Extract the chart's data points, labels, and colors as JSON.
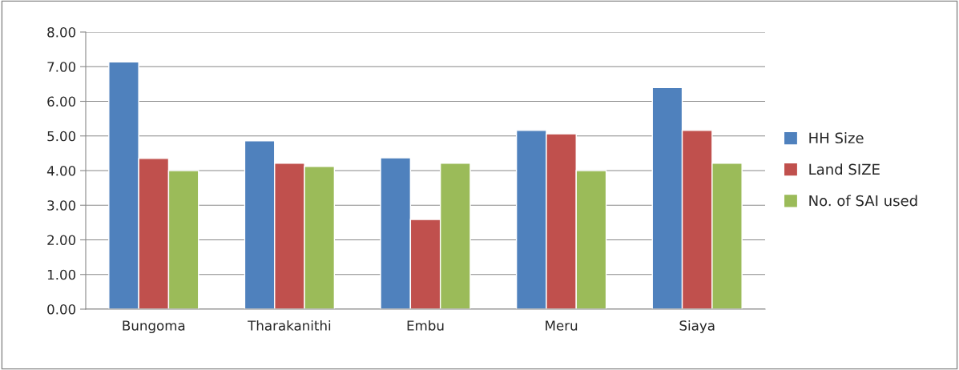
{
  "chart_data": {
    "type": "bar",
    "categories": [
      "Bungoma",
      "Tharakanithi",
      "Embu",
      "Meru",
      "Siaya"
    ],
    "series": [
      {
        "name": "HH Size",
        "color": "#4f81bd",
        "values": [
          7.14,
          4.86,
          4.37,
          5.16,
          6.4
        ]
      },
      {
        "name": "Land SIZE",
        "color": "#c0504d",
        "values": [
          4.35,
          4.21,
          2.59,
          5.06,
          5.16
        ]
      },
      {
        "name": "No. of SAI used",
        "color": "#9bbb59",
        "values": [
          4.0,
          4.12,
          4.21,
          4.0,
          4.21
        ]
      }
    ],
    "ylim": [
      0,
      8
    ],
    "yticks": [
      {
        "value": 0,
        "label": "0.00"
      },
      {
        "value": 1,
        "label": "1.00"
      },
      {
        "value": 2,
        "label": "2.00"
      },
      {
        "value": 3,
        "label": "3.00"
      },
      {
        "value": 4,
        "label": "4.00"
      },
      {
        "value": 5,
        "label": "5.00"
      },
      {
        "value": 6,
        "label": "6.00"
      },
      {
        "value": 7,
        "label": "7.00"
      },
      {
        "value": 8,
        "label": "8.00"
      }
    ],
    "grid": "y",
    "legend": "right"
  }
}
